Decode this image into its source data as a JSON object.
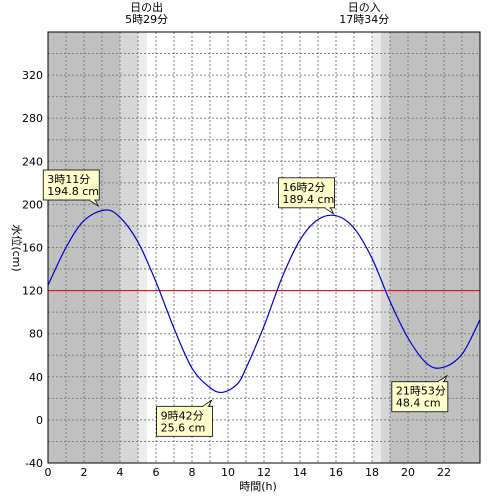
{
  "chart_data": {
    "type": "line",
    "xlabel": "時間(h)",
    "ylabel": "水位(cm)",
    "xlim": [
      0,
      24
    ],
    "ylim": [
      -40,
      360
    ],
    "x_ticks": [
      0,
      2,
      4,
      6,
      8,
      10,
      12,
      14,
      16,
      18,
      20,
      22
    ],
    "y_ticks": [
      -40,
      0,
      40,
      80,
      120,
      160,
      200,
      240,
      280,
      320
    ],
    "grid": true,
    "reference_line": {
      "y": 120,
      "color": "#e00000"
    },
    "series": [
      {
        "color": "#0000cc",
        "x": [
          0,
          1,
          2,
          3.18,
          4,
          5,
          6,
          7,
          8,
          9,
          9.7,
          10.5,
          11,
          12,
          13,
          14,
          15,
          16.03,
          17,
          18,
          19,
          20,
          21,
          21.88,
          23,
          24
        ],
        "y": [
          125,
          160,
          185,
          194.8,
          188,
          165,
          128,
          85,
          48,
          30,
          25.6,
          33,
          48,
          87,
          132,
          167,
          186,
          189.4,
          178,
          150,
          110,
          76,
          53,
          48.4,
          61,
          93
        ]
      }
    ],
    "shading": [
      {
        "from": 0,
        "to": 4,
        "color": "#c0c0c0"
      },
      {
        "from": 4,
        "to": 5,
        "color": "#d6d6d6"
      },
      {
        "from": 5,
        "to": 5.5,
        "color": "#ececec"
      },
      {
        "from": 18,
        "to": 18.5,
        "color": "#ececec"
      },
      {
        "from": 18.5,
        "to": 19,
        "color": "#d6d6d6"
      },
      {
        "from": 19,
        "to": 24,
        "color": "#c0c0c0"
      }
    ],
    "sun_labels": [
      {
        "x": 5.48,
        "title": "日の出",
        "time": "5時29分"
      },
      {
        "x": 17.57,
        "title": "日の入",
        "time": "17時34分"
      }
    ],
    "annotations": [
      {
        "x": 3.18,
        "y": 194.8,
        "time": "3時11分",
        "value": "194.8 cm",
        "position": "above-left"
      },
      {
        "x": 16.03,
        "y": 189.4,
        "time": "16時2分",
        "value": "189.4 cm",
        "position": "above"
      },
      {
        "x": 9.7,
        "y": 25.6,
        "time": "9時42分",
        "value": "25.6 cm",
        "position": "below-left"
      },
      {
        "x": 21.88,
        "y": 48.4,
        "time": "21時53分",
        "value": "48.4 cm",
        "position": "below"
      }
    ]
  }
}
